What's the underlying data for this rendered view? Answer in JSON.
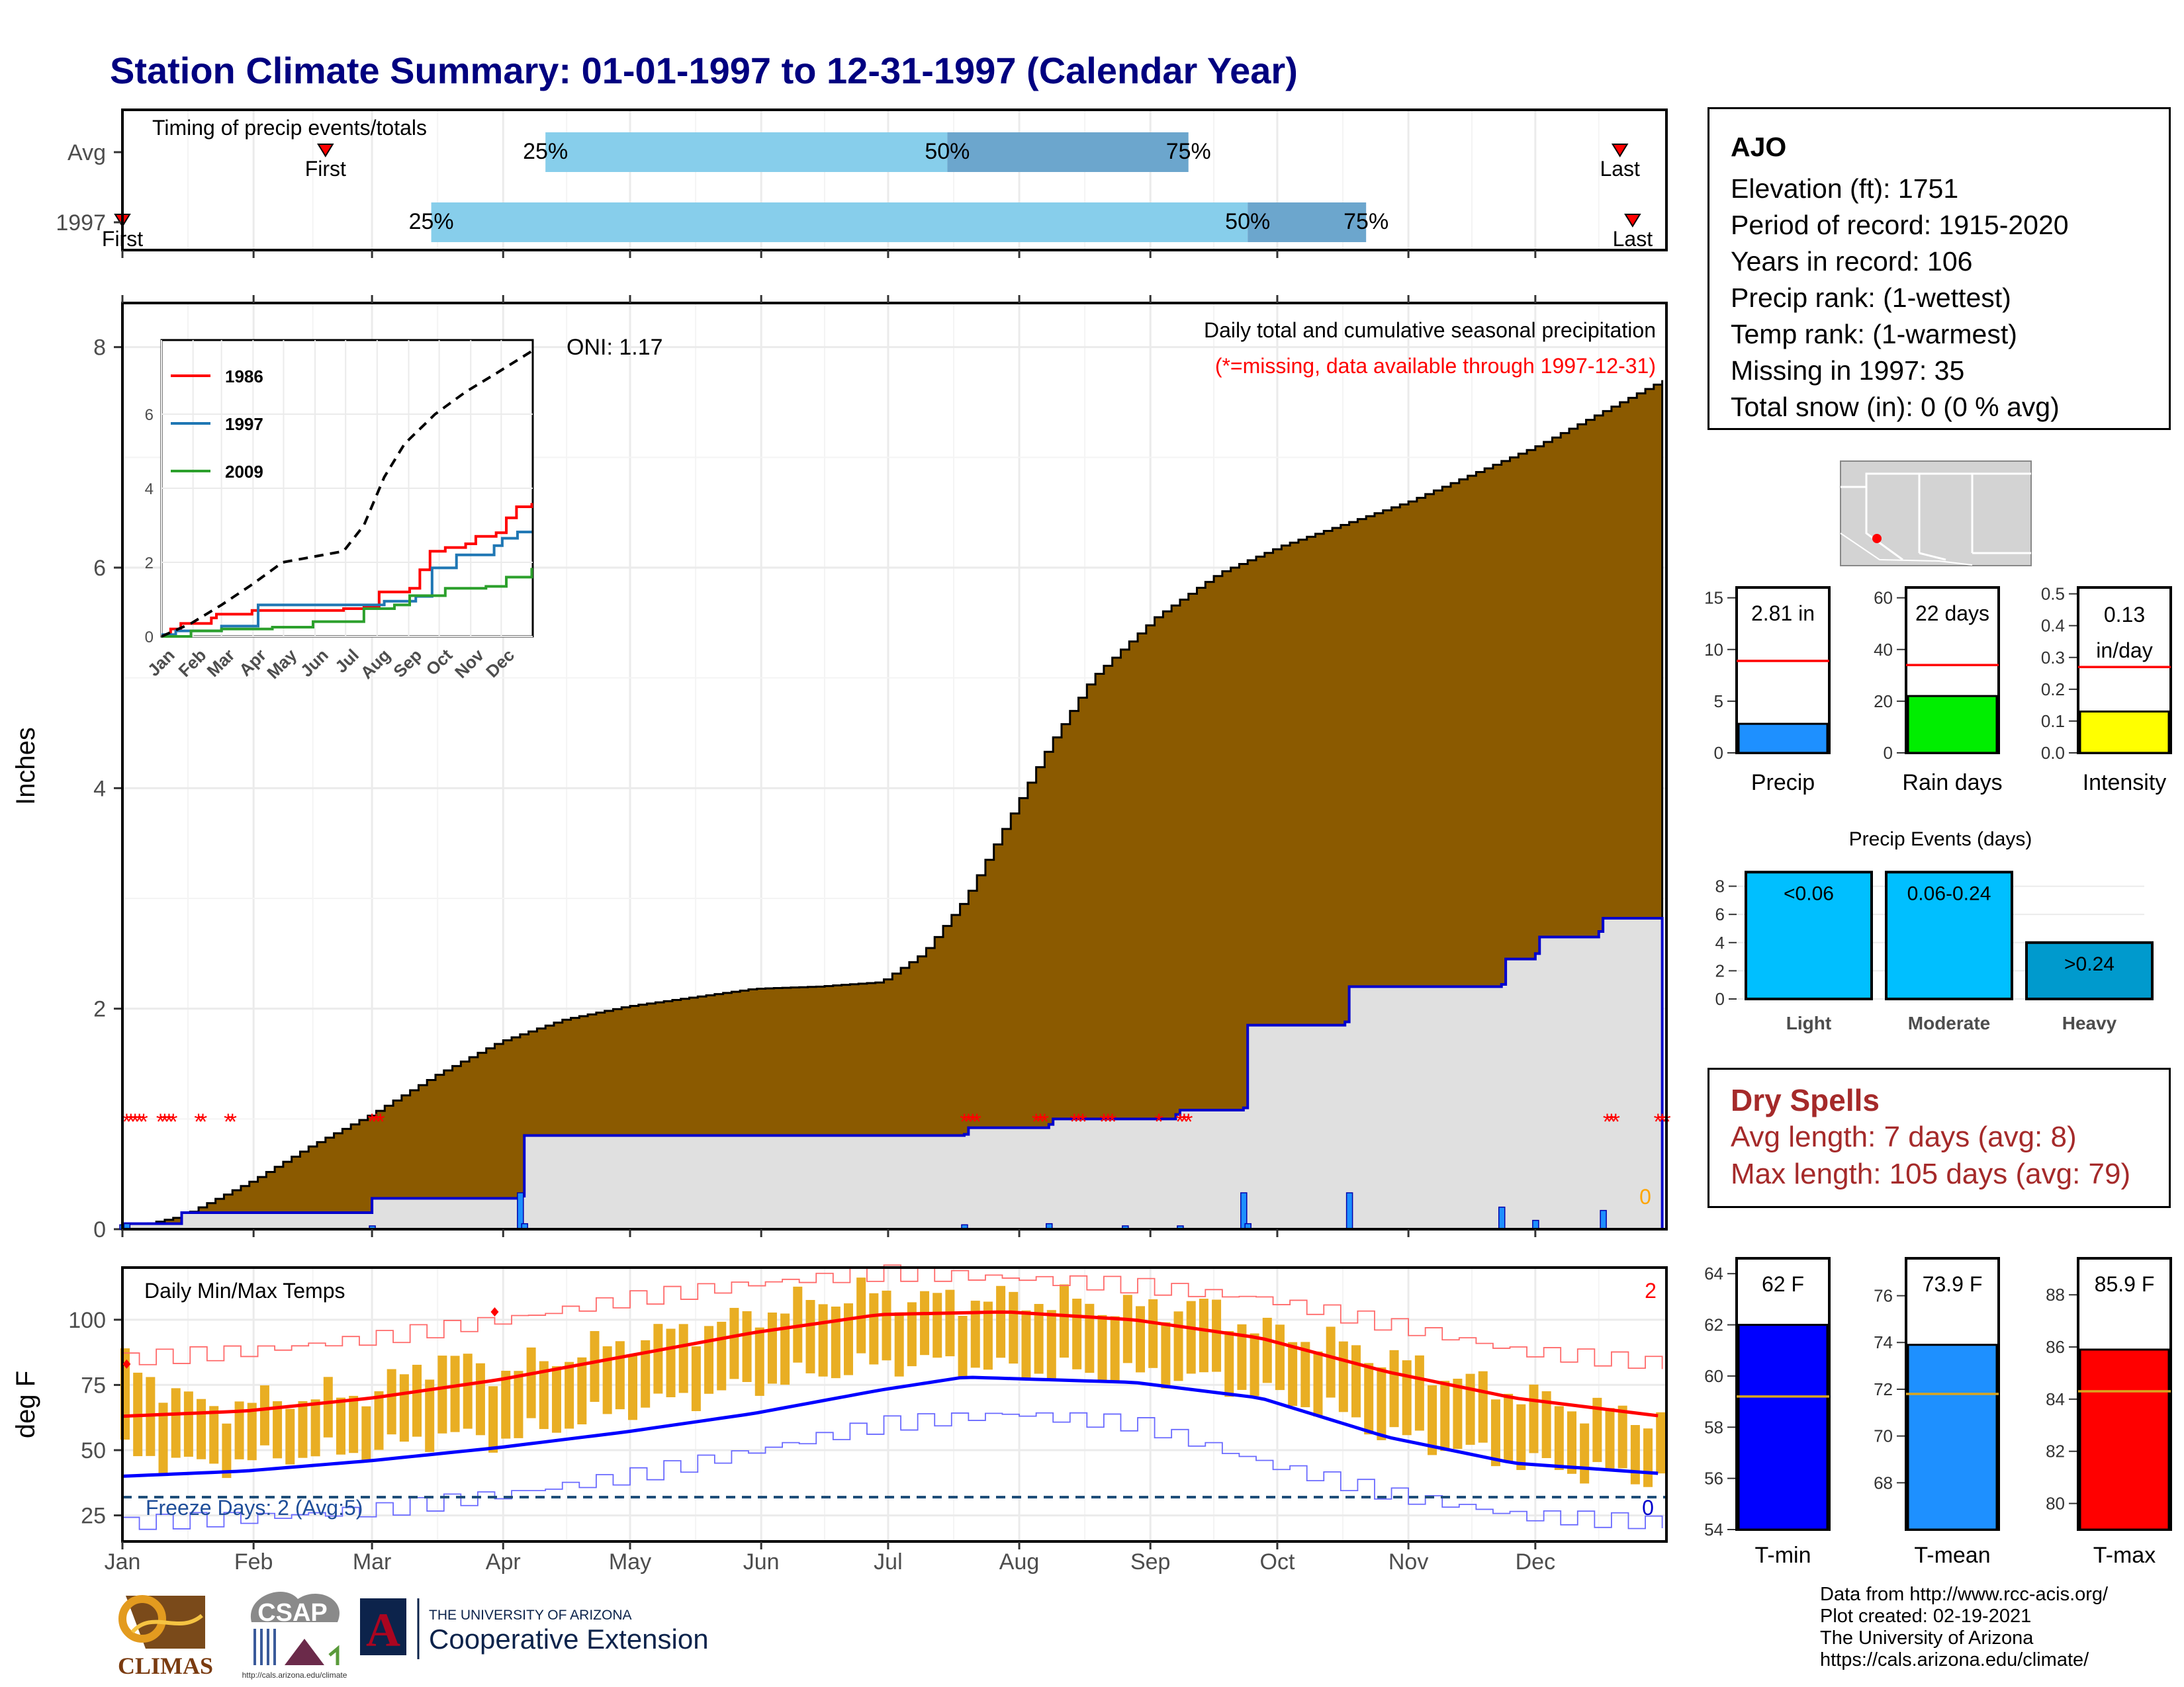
{
  "title": "Station Climate Summary: 01-01-1997 to 12-31-1997 (Calendar Year)",
  "colors": {
    "title": "#000080",
    "cum_fill": "#8B5A00",
    "cum_1997_line": "#0000cd",
    "temp_bar": "#E9AE23",
    "precip_bar": "#1E90FF",
    "rain_bar": "#00EE00",
    "intensity_bar": "#FFFF00",
    "tmin": "#0000FF",
    "tmean": "#1E90FF",
    "tmax": "#FF0000",
    "missing": "#FF0000",
    "dry": "#A52A2A"
  },
  "timing": {
    "label": "Timing of precip events/totals",
    "rows": [
      {
        "name": "Avg",
        "first_label": "First",
        "last_label": "Last",
        "p25": "25%",
        "p50": "50%",
        "p75": "75%"
      },
      {
        "name": "1997",
        "first_label": "First",
        "last_label": "Last",
        "p25": "25%",
        "p50": "50%",
        "p75": "75%"
      }
    ]
  },
  "station": {
    "name": "AJO",
    "lines": [
      "Elevation (ft): 1751",
      "Period of record: 1915-2020",
      "Years in record: 106",
      "Precip rank:  (1-wettest)",
      "Temp rank:  (1-warmest)",
      "Missing in 1997: 35",
      "Total snow (in): 0 (0 % avg)"
    ]
  },
  "dry_spells": {
    "title": "Dry Spells",
    "avg": "Avg length: 7 days (avg: 8)",
    "max": "Max length: 105 days (avg: 79)"
  },
  "credits": [
    "Data from http://www.rcc-acis.org/",
    "Plot created: 02-19-2021",
    "The University of Arizona",
    "https://cals.arizona.edu/climate/"
  ],
  "logos": {
    "climas": "CLIMAS",
    "csap": "CSAP",
    "csap_url": "http://cals.arizona.edu/climate",
    "ua_small": "THE UNIVERSITY OF ARIZONA",
    "ua_big": "Cooperative Extension",
    "ua_letter": "A"
  },
  "chart_data": [
    {
      "id": "timing",
      "type": "bar",
      "title": "Timing of precip events/totals",
      "categories": [
        "Avg",
        "1997"
      ],
      "series": [
        {
          "name": "Avg",
          "first": "Feb 18",
          "p25": "Apr 11",
          "p50": "Jul 15",
          "p75": "Sep 10",
          "last": "Dec 21"
        },
        {
          "name": "1997",
          "first": "Jan 1",
          "p25": "Mar 15",
          "p50": "Sep 24",
          "p75": "Oct 22",
          "last": "Dec 24"
        }
      ]
    },
    {
      "id": "cumulative",
      "type": "area",
      "title": "Daily total and cumulative seasonal precipitation",
      "subtitle": "(*=missing, data available through 1997-12-31)",
      "ylabel": "Inches",
      "ylim": [
        0,
        8.4
      ],
      "yticks": [
        0,
        2,
        4,
        6,
        8
      ],
      "oni": "ONI: 1.17",
      "corner_value": "0",
      "xlabels": [
        "Jan",
        "Feb",
        "Mar",
        "Apr",
        "May",
        "Jun",
        "Jul",
        "Aug",
        "Sep",
        "Oct",
        "Nov",
        "Dec"
      ],
      "avg_cumulative": [
        [
          1,
          0.0
        ],
        [
          15,
          0.12
        ],
        [
          32,
          0.45
        ],
        [
          45,
          0.75
        ],
        [
          60,
          1.05
        ],
        [
          75,
          1.4
        ],
        [
          90,
          1.7
        ],
        [
          105,
          1.9
        ],
        [
          120,
          2.02
        ],
        [
          135,
          2.1
        ],
        [
          150,
          2.18
        ],
        [
          165,
          2.2
        ],
        [
          180,
          2.24
        ],
        [
          190,
          2.5
        ],
        [
          200,
          3.0
        ],
        [
          210,
          3.7
        ],
        [
          220,
          4.4
        ],
        [
          230,
          5.0
        ],
        [
          245,
          5.55
        ],
        [
          260,
          5.95
        ],
        [
          275,
          6.2
        ],
        [
          290,
          6.4
        ],
        [
          305,
          6.6
        ],
        [
          320,
          6.85
        ],
        [
          335,
          7.1
        ],
        [
          350,
          7.4
        ],
        [
          365,
          7.7
        ]
      ],
      "cumulative_1997": [
        [
          1,
          0.05
        ],
        [
          15,
          0.15
        ],
        [
          59,
          0.15
        ],
        [
          60,
          0.28
        ],
        [
          95,
          0.3
        ],
        [
          96,
          0.85
        ],
        [
          200,
          0.86
        ],
        [
          201,
          0.92
        ],
        [
          220,
          0.95
        ],
        [
          221,
          1.0
        ],
        [
          250,
          1.04
        ],
        [
          251,
          1.08
        ],
        [
          266,
          1.1
        ],
        [
          267,
          1.85
        ],
        [
          290,
          1.88
        ],
        [
          291,
          2.2
        ],
        [
          327,
          2.22
        ],
        [
          328,
          2.45
        ],
        [
          335,
          2.5
        ],
        [
          336,
          2.65
        ],
        [
          350,
          2.7
        ],
        [
          351,
          2.82
        ],
        [
          365,
          2.82
        ]
      ],
      "daily_1997": [
        [
          1,
          0.04
        ],
        [
          2,
          0.05
        ],
        [
          60,
          0.03
        ],
        [
          95,
          0.33
        ],
        [
          96,
          0.05
        ],
        [
          200,
          0.04
        ],
        [
          220,
          0.05
        ],
        [
          238,
          0.03
        ],
        [
          251,
          0.03
        ],
        [
          266,
          0.33
        ],
        [
          267,
          0.05
        ],
        [
          291,
          0.33
        ],
        [
          327,
          0.2
        ],
        [
          335,
          0.08
        ],
        [
          351,
          0.17
        ]
      ],
      "missing_days": [
        2,
        3,
        4,
        5,
        6,
        10,
        11,
        12,
        13,
        19,
        20,
        26,
        27,
        60,
        61,
        62,
        200,
        201,
        202,
        203,
        217,
        218,
        219,
        226,
        227,
        228,
        233,
        234,
        235,
        246,
        251,
        252,
        253,
        352,
        353,
        354,
        364,
        365,
        366
      ]
    },
    {
      "id": "inset",
      "type": "line",
      "ylim": [
        0,
        8
      ],
      "yticks": [
        0,
        2,
        4,
        6
      ],
      "xlabels": [
        "Jan",
        "Feb",
        "Mar",
        "Apr",
        "May",
        "Jun",
        "Jul",
        "Aug",
        "Sep",
        "Oct",
        "Nov",
        "Dec"
      ],
      "series": [
        {
          "name": "1986",
          "points": [
            [
              1,
              0
            ],
            [
              10,
              0.2
            ],
            [
              20,
              0.35
            ],
            [
              50,
              0.5
            ],
            [
              55,
              0.6
            ],
            [
              90,
              0.7
            ],
            [
              180,
              0.75
            ],
            [
              200,
              0.8
            ],
            [
              215,
              1.2
            ],
            [
              245,
              1.3
            ],
            [
              255,
              1.8
            ],
            [
              265,
              2.3
            ],
            [
              280,
              2.4
            ],
            [
              300,
              2.5
            ],
            [
              310,
              2.7
            ],
            [
              330,
              2.8
            ],
            [
              340,
              3.2
            ],
            [
              350,
              3.5
            ],
            [
              365,
              3.6
            ]
          ]
        },
        {
          "name": "1997",
          "points": [
            [
              1,
              0.05
            ],
            [
              15,
              0.15
            ],
            [
              60,
              0.28
            ],
            [
              96,
              0.85
            ],
            [
              220,
              0.95
            ],
            [
              251,
              1.08
            ],
            [
              267,
              1.85
            ],
            [
              291,
              2.2
            ],
            [
              328,
              2.45
            ],
            [
              336,
              2.65
            ],
            [
              351,
              2.82
            ],
            [
              365,
              2.82
            ]
          ]
        },
        {
          "name": "2009",
          "points": [
            [
              1,
              0
            ],
            [
              30,
              0.15
            ],
            [
              60,
              0.2
            ],
            [
              110,
              0.25
            ],
            [
              150,
              0.4
            ],
            [
              200,
              0.75
            ],
            [
              230,
              0.85
            ],
            [
              245,
              1.1
            ],
            [
              280,
              1.3
            ],
            [
              320,
              1.35
            ],
            [
              340,
              1.6
            ],
            [
              365,
              1.85
            ]
          ]
        },
        {
          "name": "avg",
          "points": [
            [
              1,
              0
            ],
            [
              30,
              0.35
            ],
            [
              60,
              0.85
            ],
            [
              90,
              1.4
            ],
            [
              120,
              2.0
            ],
            [
              150,
              2.15
            ],
            [
              180,
              2.3
            ],
            [
              200,
              3.0
            ],
            [
              220,
              4.3
            ],
            [
              240,
              5.2
            ],
            [
              270,
              6.0
            ],
            [
              300,
              6.6
            ],
            [
              330,
              7.1
            ],
            [
              365,
              7.7
            ]
          ]
        }
      ]
    },
    {
      "id": "temps",
      "type": "bar",
      "title": "Daily Min/Max Temps",
      "ylabel": "deg F",
      "ylim": [
        15,
        120
      ],
      "yticks": [
        25,
        50,
        75,
        100
      ],
      "freeze": "Freeze Days: 2 (Avg:5)",
      "corner_top": "2",
      "corner_bottom": "0",
      "freeze_threshold": 32,
      "normal_max": [
        [
          1,
          63
        ],
        [
          30,
          65
        ],
        [
          60,
          70
        ],
        [
          90,
          77
        ],
        [
          120,
          86
        ],
        [
          150,
          95
        ],
        [
          180,
          102
        ],
        [
          210,
          103
        ],
        [
          240,
          100
        ],
        [
          270,
          93
        ],
        [
          300,
          80
        ],
        [
          330,
          70
        ],
        [
          365,
          63
        ]
      ],
      "normal_min": [
        [
          1,
          40
        ],
        [
          30,
          42
        ],
        [
          60,
          46
        ],
        [
          90,
          51
        ],
        [
          120,
          57
        ],
        [
          150,
          64
        ],
        [
          180,
          73
        ],
        [
          200,
          78
        ],
        [
          240,
          76
        ],
        [
          270,
          70
        ],
        [
          300,
          55
        ],
        [
          330,
          45
        ],
        [
          365,
          41
        ]
      ],
      "record_max": [
        [
          1,
          85
        ],
        [
          30,
          88
        ],
        [
          60,
          93
        ],
        [
          90,
          100
        ],
        [
          120,
          108
        ],
        [
          150,
          114
        ],
        [
          180,
          118
        ],
        [
          210,
          116
        ],
        [
          240,
          113
        ],
        [
          270,
          108
        ],
        [
          300,
          98
        ],
        [
          330,
          88
        ],
        [
          365,
          83
        ]
      ],
      "record_min": [
        [
          1,
          22
        ],
        [
          30,
          24
        ],
        [
          60,
          27
        ],
        [
          90,
          33
        ],
        [
          120,
          40
        ],
        [
          150,
          50
        ],
        [
          180,
          60
        ],
        [
          210,
          64
        ],
        [
          240,
          60
        ],
        [
          270,
          45
        ],
        [
          300,
          33
        ],
        [
          330,
          25
        ],
        [
          365,
          22
        ]
      ],
      "daily_max_1997": [
        [
          1,
          83
        ],
        [
          20,
          66
        ],
        [
          40,
          70
        ],
        [
          60,
          72
        ],
        [
          75,
          86
        ],
        [
          90,
          80
        ],
        [
          120,
          92
        ],
        [
          140,
          98
        ],
        [
          160,
          106
        ],
        [
          175,
          110
        ],
        [
          190,
          108
        ],
        [
          210,
          108
        ],
        [
          225,
          107
        ],
        [
          240,
          104
        ],
        [
          255,
          106
        ],
        [
          270,
          96
        ],
        [
          285,
          92
        ],
        [
          300,
          85
        ],
        [
          315,
          78
        ],
        [
          330,
          72
        ],
        [
          345,
          66
        ],
        [
          365,
          62
        ]
      ],
      "daily_min_1997": [
        [
          1,
          45
        ],
        [
          20,
          40
        ],
        [
          40,
          44
        ],
        [
          60,
          46
        ],
        [
          75,
          52
        ],
        [
          90,
          50
        ],
        [
          120,
          62
        ],
        [
          140,
          68
        ],
        [
          160,
          74
        ],
        [
          175,
          78
        ],
        [
          190,
          80
        ],
        [
          210,
          77
        ],
        [
          225,
          76
        ],
        [
          240,
          75
        ],
        [
          255,
          74
        ],
        [
          270,
          68
        ],
        [
          285,
          62
        ],
        [
          300,
          52
        ],
        [
          315,
          47
        ],
        [
          330,
          42
        ],
        [
          345,
          38
        ],
        [
          365,
          35
        ]
      ],
      "xlabels": [
        "Jan",
        "Feb",
        "Mar",
        "Apr",
        "May",
        "Jun",
        "Jul",
        "Aug",
        "Sep",
        "Oct",
        "Nov",
        "Dec"
      ]
    },
    {
      "id": "precip-summary",
      "type": "bar",
      "panels": [
        {
          "name": "Precip",
          "value": 2.81,
          "label": "2.81 in",
          "avg": 8.9,
          "ylim": [
            0,
            16
          ],
          "yticks": [
            0,
            5,
            10,
            15
          ]
        },
        {
          "name": "Rain days",
          "value": 22,
          "label": "22 days",
          "avg": 34,
          "ylim": [
            0,
            64
          ],
          "yticks": [
            0,
            20,
            40,
            60
          ]
        },
        {
          "name": "Intensity",
          "value": 0.13,
          "label": "0.13 in/day",
          "avg": 0.27,
          "ylim": [
            0,
            0.52
          ],
          "yticks": [
            "0.0",
            "0.1",
            "0.2",
            "0.3",
            "0.4",
            "0.5"
          ]
        }
      ]
    },
    {
      "id": "events",
      "type": "bar",
      "title": "Precip Events (days)",
      "categories": [
        "Light",
        "Moderate",
        "Heavy"
      ],
      "bar_labels": [
        "<0.06",
        "0.06-0.24",
        ">0.24"
      ],
      "values": [
        9,
        9,
        4
      ],
      "ylim": [
        0,
        9.2
      ],
      "yticks": [
        0,
        2,
        4,
        6,
        8
      ]
    },
    {
      "id": "temp-summary",
      "type": "bar",
      "panels": [
        {
          "name": "T-min",
          "value": 62,
          "label": "62 F",
          "avg": 59.2,
          "ylim": [
            54,
            64.6
          ],
          "yticks": [
            54,
            56,
            58,
            60,
            62,
            64
          ]
        },
        {
          "name": "T-mean",
          "value": 73.9,
          "label": "73.9 F",
          "avg": 71.8,
          "ylim": [
            66,
            77.6
          ],
          "yticks": [
            68,
            70,
            72,
            74,
            76
          ]
        },
        {
          "name": "T-max",
          "value": 85.9,
          "label": "85.9 F",
          "avg": 84.3,
          "ylim": [
            79,
            89.4
          ],
          "yticks": [
            80,
            82,
            84,
            86,
            88
          ]
        }
      ]
    }
  ]
}
